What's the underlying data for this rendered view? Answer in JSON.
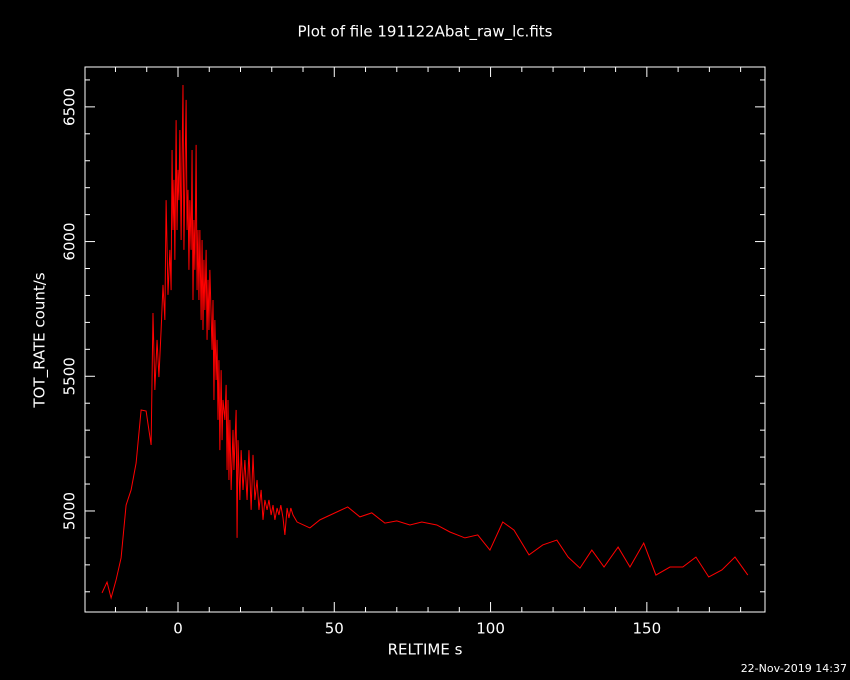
{
  "chart_data": {
    "type": "line",
    "title": "Plot of file 191122Abat_raw_lc.fits",
    "x_label": "RELTIME  s",
    "y_label": "TOT_RATE  count/s",
    "timestamp": "22-Nov-2019 14:37",
    "color": "#ff0000",
    "xlim": [
      -29.75,
      187.8
    ],
    "ylim": [
      4625,
      6648
    ],
    "xticks": [
      0,
      50,
      100,
      150
    ],
    "yticks": [
      5000,
      5500,
      6000,
      6500
    ],
    "xminorticks": [
      -20,
      -10,
      10,
      20,
      30,
      40,
      60,
      70,
      80,
      90,
      110,
      120,
      130,
      140,
      160,
      170,
      180
    ],
    "yminorticks": [
      4700,
      4800,
      4900,
      5100,
      5200,
      5300,
      5400,
      5600,
      5700,
      5800,
      5900,
      6100,
      6200,
      6300,
      6400,
      6600
    ],
    "x": [
      -24.3,
      -22.7,
      -21.4,
      -19.8,
      -18.2,
      -16.6,
      -15.0,
      -13.4,
      -11.8,
      -10.2,
      -8.6,
      -8.0,
      -7.4,
      -6.7,
      -6.1,
      -5.4,
      -4.8,
      -4.2,
      -3.8,
      -3.2,
      -2.6,
      -2.2,
      -1.9,
      -1.6,
      -1.3,
      -1.0,
      -0.6,
      -0.3,
      0.0,
      0.3,
      0.6,
      1.0,
      1.3,
      1.6,
      1.9,
      2.2,
      2.6,
      2.9,
      3.2,
      3.5,
      3.8,
      4.2,
      4.5,
      4.8,
      5.1,
      5.4,
      5.8,
      6.1,
      6.4,
      6.7,
      7.0,
      7.4,
      7.7,
      8.0,
      8.3,
      8.6,
      9.0,
      9.3,
      9.6,
      9.9,
      10.2,
      10.9,
      11.2,
      11.5,
      11.8,
      12.2,
      12.5,
      12.8,
      13.1,
      13.4,
      13.8,
      14.1,
      14.4,
      15.0,
      15.4,
      15.7,
      16.0,
      16.3,
      16.6,
      17.0,
      17.6,
      17.9,
      18.6,
      18.9,
      19.2,
      19.8,
      20.2,
      20.8,
      21.4,
      22.1,
      22.7,
      23.4,
      24.0,
      24.6,
      25.3,
      25.9,
      26.6,
      27.2,
      27.8,
      28.5,
      29.1,
      29.8,
      30.4,
      31.0,
      31.7,
      32.3,
      32.9,
      33.6,
      34.2,
      34.9,
      35.5,
      36.1,
      36.8,
      38.1,
      42.2,
      45.4,
      50.2,
      54.3,
      58.2,
      62.0,
      66.2,
      70.0,
      74.2,
      78.0,
      82.8,
      87.0,
      91.8,
      95.9,
      99.8,
      103.9,
      107.5,
      112.3,
      116.7,
      121.2,
      124.8,
      128.6,
      132.4,
      136.3,
      140.8,
      144.6,
      149.0,
      152.9,
      157.4,
      161.5,
      165.7,
      169.8,
      174.0,
      178.2,
      182.3
    ],
    "values": [
      4696,
      4736,
      4677,
      4744,
      4826,
      5022,
      5078,
      5178,
      5375,
      5371,
      5245,
      5735,
      5449,
      5635,
      5497,
      5672,
      5839,
      5709,
      6154,
      5802,
      5969,
      5820,
      6340,
      6043,
      6229,
      5932,
      6451,
      6043,
      6266,
      6154,
      6414,
      6006,
      6303,
      6581,
      5969,
      6229,
      6526,
      6043,
      6192,
      5895,
      6154,
      5969,
      6340,
      5783,
      6080,
      5895,
      6359,
      5820,
      6043,
      5783,
      6043,
      5709,
      6006,
      5672,
      5932,
      5746,
      5969,
      5635,
      5858,
      5672,
      5895,
      5598,
      5783,
      5412,
      5709,
      5486,
      5635,
      5338,
      5560,
      5226,
      5523,
      5263,
      5412,
      5338,
      5468,
      5152,
      5412,
      5115,
      5338,
      5078,
      5301,
      5152,
      5375,
      4900,
      5263,
      5041,
      5226,
      5078,
      5189,
      5041,
      5226,
      5004,
      5208,
      5041,
      5115,
      5004,
      5078,
      4967,
      5041,
      5004,
      5041,
      4985,
      5022,
      4967,
      5011,
      4985,
      5022,
      4974,
      4911,
      5011,
      4974,
      5011,
      4985,
      4959,
      4937,
      4967,
      4993,
      5015,
      4978,
      4993,
      4955,
      4963,
      4948,
      4959,
      4948,
      4922,
      4900,
      4911,
      4855,
      4959,
      4929,
      4837,
      4874,
      4892,
      4829,
      4788,
      4855,
      4792,
      4866,
      4792,
      4881,
      4762,
      4792,
      4792,
      4829,
      4755,
      4781,
      4829,
      4762
    ]
  }
}
